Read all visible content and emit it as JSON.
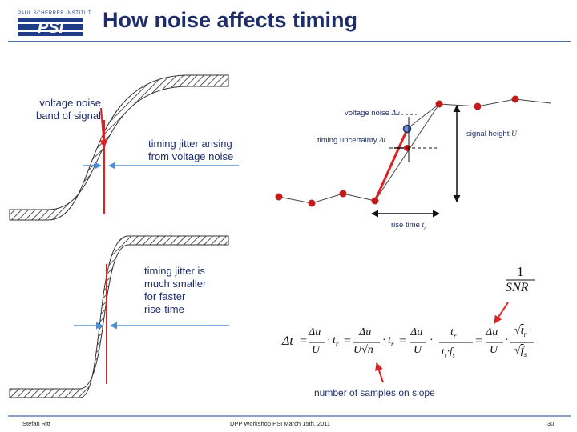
{
  "header": {
    "title": "How noise affects timing",
    "logo_top_text": "PAUL SCHERRER INSTITUT",
    "logo_text": "PSI"
  },
  "left_panel": {
    "voltage_noise_band": "voltage noise\nband of signal",
    "timing_jitter_arising": "timing jitter arising\nfrom voltage noise",
    "timing_jitter_smaller": "timing jitter is\nmuch smaller\nfor faster\nrise-time"
  },
  "right_panel": {
    "voltage_noise_label": "voltage noise",
    "voltage_noise_symbol": "Δu",
    "timing_uncertainty_label": "timing uncertainty",
    "timing_uncertainty_symbol": "Δt",
    "signal_height_label": "signal height",
    "signal_height_symbol": "U",
    "rise_time_label": "rise time",
    "rise_time_symbol": "t",
    "rise_time_subscript": "r"
  },
  "formula": {
    "one_over_snr_num": "1",
    "one_over_snr_den": "SNR",
    "delta_t": "Δt",
    "equals": "=",
    "du": "Δu",
    "U": "U",
    "tr": "t",
    "r_sub": "r",
    "sqrt_n": "√n",
    "times": "·",
    "fs": "f",
    "s_sub": "s",
    "samples_on_slope": "number of samples on slope"
  },
  "footer": {
    "author": "Stefan Ritt",
    "event": "DPP Workshop PSI  March 15th, 2011",
    "page": "30"
  },
  "colors": {
    "title": "#1f2e6b",
    "red": "#e02020",
    "blue": "#4a90d9",
    "dark_red_dot": "#c41a1a",
    "line_gray": "#444444"
  }
}
